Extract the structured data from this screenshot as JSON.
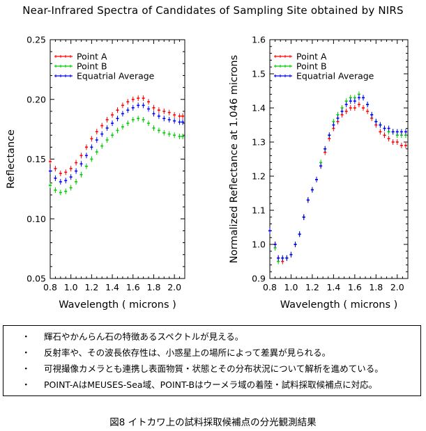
{
  "title": "Near-Infrared Spectra of Candidates of Sampling Site obtained by NIRS",
  "caption": "図8 イトカワ上の試料採取候補点の分光観測結果",
  "bullet_marker": "・",
  "bullets": [
    "輝石やかんらん石の特徴あるスペクトルが見える。",
    "反射率や、その波長依存性は、小惑星上の場所によって差異が見られる。",
    "可視撮像カメラとも連携し表面物質・状態とその分布状況について解析を進めている。",
    "POINT-AはMEUSES-Sea域、POINT-Bはウーメラ域の着陸・試料採取候補点に対応。"
  ],
  "chart_data": [
    {
      "type": "scatter",
      "xlabel": "Wavelength ( microns )",
      "ylabel": "Reflectance",
      "xlim": [
        0.8,
        2.1
      ],
      "ylim": [
        0.05,
        0.25
      ],
      "xticks": [
        "0.8",
        "1.0",
        "1.2",
        "1.4",
        "1.6",
        "1.8",
        "2.0"
      ],
      "xtick_values": [
        0.8,
        1.0,
        1.2,
        1.4,
        1.6,
        1.8,
        2.0
      ],
      "yticks": [
        "0.05",
        "0.10",
        "0.15",
        "0.20",
        "0.25"
      ],
      "ytick_values": [
        0.05,
        0.1,
        0.15,
        0.2,
        0.25
      ],
      "legend_position": "top-left",
      "series": [
        {
          "name": "Point A",
          "color": "#ff0000",
          "x": [
            0.8,
            0.85,
            0.9,
            0.95,
            1.0,
            1.05,
            1.1,
            1.15,
            1.2,
            1.25,
            1.3,
            1.35,
            1.4,
            1.45,
            1.5,
            1.55,
            1.6,
            1.65,
            1.7,
            1.75,
            1.8,
            1.85,
            1.9,
            1.95,
            2.0,
            2.05,
            2.08
          ],
          "y": [
            0.148,
            0.142,
            0.138,
            0.139,
            0.142,
            0.147,
            0.153,
            0.16,
            0.167,
            0.173,
            0.178,
            0.183,
            0.187,
            0.191,
            0.195,
            0.198,
            0.2,
            0.201,
            0.201,
            0.198,
            0.193,
            0.191,
            0.19,
            0.189,
            0.187,
            0.186,
            0.186
          ]
        },
        {
          "name": "Point B",
          "color": "#00cc00",
          "x": [
            0.8,
            0.85,
            0.9,
            0.95,
            1.0,
            1.05,
            1.1,
            1.15,
            1.2,
            1.25,
            1.3,
            1.35,
            1.4,
            1.45,
            1.5,
            1.55,
            1.6,
            1.65,
            1.7,
            1.75,
            1.8,
            1.85,
            1.9,
            1.95,
            2.0,
            2.05,
            2.08
          ],
          "y": [
            0.128,
            0.124,
            0.122,
            0.123,
            0.126,
            0.131,
            0.137,
            0.144,
            0.15,
            0.156,
            0.161,
            0.166,
            0.17,
            0.174,
            0.177,
            0.18,
            0.183,
            0.184,
            0.183,
            0.18,
            0.176,
            0.174,
            0.172,
            0.171,
            0.17,
            0.169,
            0.169
          ]
        },
        {
          "name": "Equatrial Average",
          "color": "#0000ff",
          "x": [
            0.8,
            0.85,
            0.9,
            0.95,
            1.0,
            1.05,
            1.1,
            1.15,
            1.2,
            1.25,
            1.3,
            1.35,
            1.4,
            1.45,
            1.5,
            1.55,
            1.6,
            1.65,
            1.7,
            1.75,
            1.8,
            1.85,
            1.9,
            1.95,
            2.0,
            2.05,
            2.08
          ],
          "y": [
            0.14,
            0.134,
            0.131,
            0.132,
            0.135,
            0.14,
            0.146,
            0.153,
            0.16,
            0.166,
            0.171,
            0.176,
            0.18,
            0.184,
            0.188,
            0.191,
            0.193,
            0.195,
            0.195,
            0.192,
            0.188,
            0.186,
            0.184,
            0.183,
            0.182,
            0.181,
            0.181
          ]
        }
      ]
    },
    {
      "type": "scatter",
      "xlabel": "Wavelength ( microns )",
      "ylabel": "Normalized Reflectance at 1.046 microns",
      "xlim": [
        0.8,
        2.1
      ],
      "ylim": [
        0.9,
        1.6
      ],
      "xticks": [
        "0.8",
        "1.0",
        "1.2",
        "1.4",
        "1.6",
        "1.8",
        "2.0"
      ],
      "xtick_values": [
        0.8,
        1.0,
        1.2,
        1.4,
        1.6,
        1.8,
        2.0
      ],
      "yticks": [
        "0.9",
        "1.0",
        "1.1",
        "1.2",
        "1.3",
        "1.4",
        "1.5",
        "1.6"
      ],
      "ytick_values": [
        0.9,
        1.0,
        1.1,
        1.2,
        1.3,
        1.4,
        1.5,
        1.6
      ],
      "legend_position": "top-left",
      "series": [
        {
          "name": "Point A",
          "color": "#ff0000",
          "x": [
            0.8,
            0.85,
            0.88,
            0.92,
            0.96,
            1.0,
            1.04,
            1.08,
            1.12,
            1.16,
            1.2,
            1.24,
            1.28,
            1.32,
            1.36,
            1.4,
            1.44,
            1.48,
            1.52,
            1.56,
            1.6,
            1.64,
            1.68,
            1.72,
            1.76,
            1.8,
            1.84,
            1.88,
            1.92,
            1.96,
            2.0,
            2.04,
            2.08
          ],
          "y": [
            1.04,
            1.0,
            0.96,
            0.95,
            0.96,
            0.97,
            1.0,
            1.03,
            1.08,
            1.13,
            1.16,
            1.19,
            1.23,
            1.27,
            1.31,
            1.34,
            1.36,
            1.38,
            1.39,
            1.4,
            1.4,
            1.41,
            1.4,
            1.39,
            1.37,
            1.35,
            1.33,
            1.32,
            1.31,
            1.3,
            1.3,
            1.29,
            1.29
          ]
        },
        {
          "name": "Point B",
          "color": "#00cc00",
          "x": [
            0.8,
            0.85,
            0.88,
            0.92,
            0.96,
            1.0,
            1.04,
            1.08,
            1.12,
            1.16,
            1.2,
            1.24,
            1.28,
            1.32,
            1.36,
            1.4,
            1.44,
            1.48,
            1.52,
            1.56,
            1.6,
            1.64,
            1.68,
            1.72,
            1.76,
            1.8,
            1.84,
            1.88,
            1.92,
            1.96,
            2.0,
            2.04,
            2.08
          ],
          "y": [
            1.04,
            0.99,
            0.95,
            0.96,
            0.96,
            0.97,
            1.0,
            1.03,
            1.08,
            1.13,
            1.16,
            1.19,
            1.24,
            1.28,
            1.32,
            1.36,
            1.38,
            1.4,
            1.42,
            1.43,
            1.43,
            1.44,
            1.43,
            1.41,
            1.38,
            1.36,
            1.35,
            1.34,
            1.33,
            1.33,
            1.32,
            1.32,
            1.32
          ]
        },
        {
          "name": "Equatrial Average",
          "color": "#0000ff",
          "x": [
            0.8,
            0.85,
            0.88,
            0.92,
            0.96,
            1.0,
            1.04,
            1.08,
            1.12,
            1.16,
            1.2,
            1.24,
            1.28,
            1.32,
            1.36,
            1.4,
            1.44,
            1.48,
            1.52,
            1.56,
            1.6,
            1.64,
            1.68,
            1.72,
            1.76,
            1.8,
            1.84,
            1.88,
            1.92,
            1.96,
            2.0,
            2.04,
            2.08
          ],
          "y": [
            1.04,
            1.0,
            0.96,
            0.96,
            0.96,
            0.97,
            1.0,
            1.03,
            1.08,
            1.13,
            1.16,
            1.19,
            1.23,
            1.28,
            1.32,
            1.35,
            1.37,
            1.39,
            1.41,
            1.42,
            1.42,
            1.43,
            1.43,
            1.41,
            1.38,
            1.36,
            1.35,
            1.34,
            1.34,
            1.33,
            1.33,
            1.33,
            1.33
          ]
        }
      ]
    }
  ]
}
